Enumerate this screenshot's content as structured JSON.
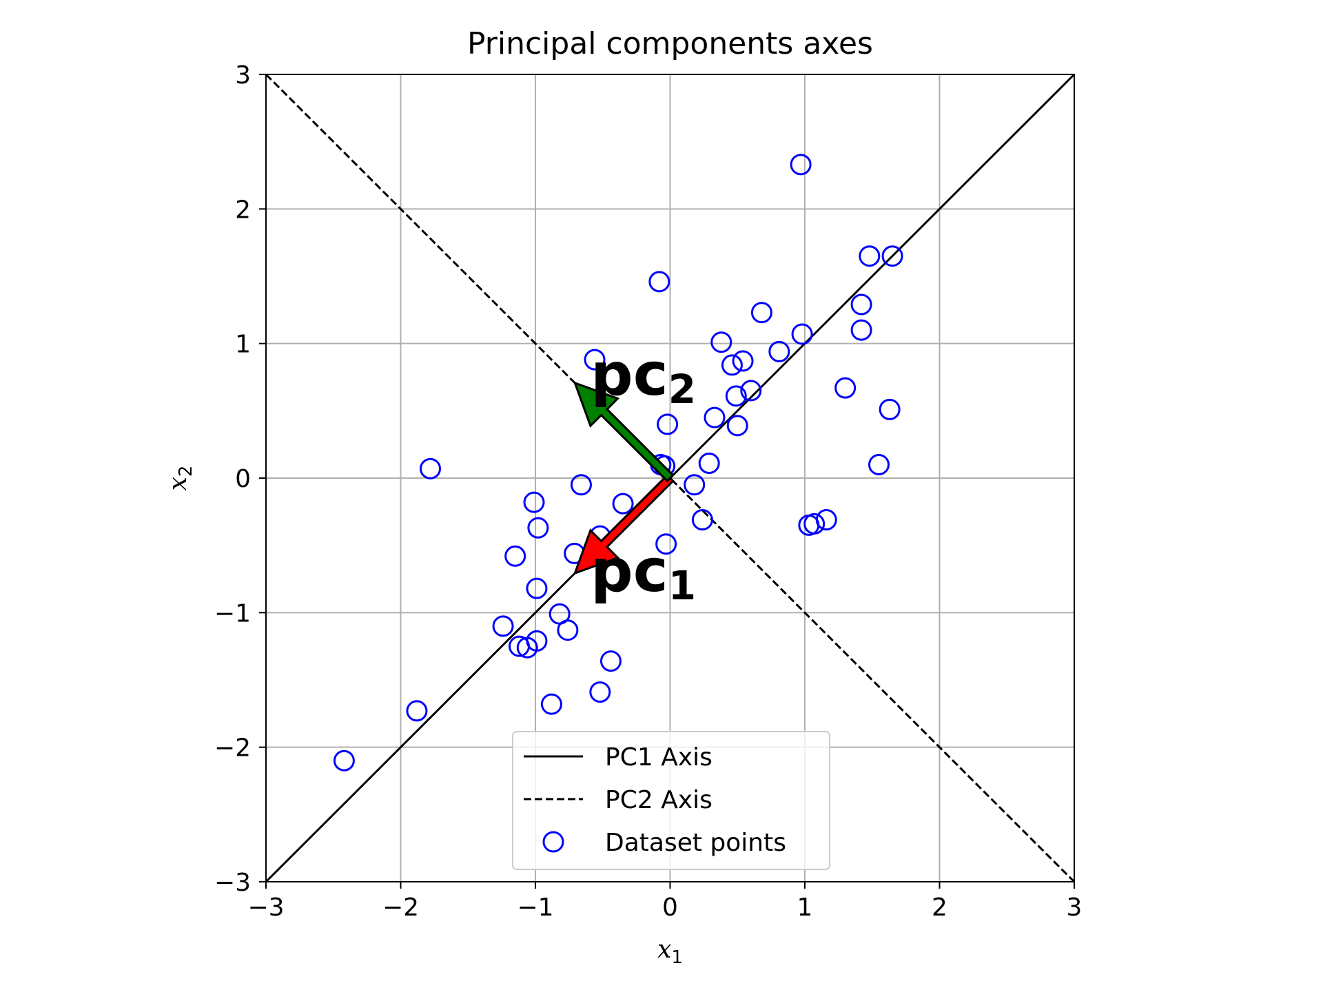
{
  "chart_data": {
    "type": "scatter",
    "title": "Principal components axes",
    "xlabel": "x",
    "xlabel_sub": "1",
    "ylabel": "x",
    "ylabel_sub": "2",
    "xlim": [
      -3,
      3
    ],
    "ylim": [
      -3,
      3
    ],
    "xticks": [
      -3,
      -2,
      -1,
      0,
      1,
      2,
      3
    ],
    "yticks": [
      -3,
      -2,
      -1,
      0,
      1,
      2,
      3
    ],
    "xtick_labels": [
      "−3",
      "−2",
      "−1",
      "0",
      "1",
      "2",
      "3"
    ],
    "ytick_labels": [
      "−3",
      "−2",
      "−1",
      "0",
      "1",
      "2",
      "3"
    ],
    "grid": true,
    "legend_position": "lower-center",
    "lines": [
      {
        "name": "PC1 Axis",
        "style": "solid",
        "color": "#000000",
        "x": [
          -3,
          3
        ],
        "y": [
          -3,
          3
        ]
      },
      {
        "name": "PC2 Axis",
        "style": "dashed",
        "color": "#000000",
        "x": [
          -3,
          3
        ],
        "y": [
          3,
          -3
        ]
      }
    ],
    "points": {
      "name": "Dataset points",
      "color": "#0000ff",
      "marker": "open-circle",
      "x": [
        0.97,
        -0.08,
        1.48,
        1.65,
        1.42,
        0.68,
        1.42,
        0.98,
        0.38,
        0.81,
        0.54,
        0.46,
        -0.56,
        1.3,
        0.6,
        0.49,
        1.63,
        0.33,
        0.5,
        -0.02,
        -0.07,
        -0.04,
        0.29,
        1.55,
        -1.78,
        -0.66,
        0.18,
        -1.01,
        -0.35,
        -0.98,
        0.24,
        1.07,
        1.03,
        1.16,
        -0.52,
        -0.03,
        -0.71,
        -1.15,
        -0.99,
        -0.82,
        -1.24,
        -0.76,
        -0.99,
        -1.06,
        -1.12,
        -0.44,
        -0.52,
        -0.88,
        -1.88,
        -2.42
      ],
      "y": [
        2.33,
        1.46,
        1.65,
        1.65,
        1.29,
        1.23,
        1.1,
        1.07,
        1.01,
        0.94,
        0.87,
        0.84,
        0.88,
        0.67,
        0.65,
        0.61,
        0.51,
        0.45,
        0.39,
        0.4,
        0.1,
        0.09,
        0.11,
        0.1,
        0.07,
        -0.05,
        -0.05,
        -0.18,
        -0.19,
        -0.37,
        -0.31,
        -0.34,
        -0.35,
        -0.31,
        -0.43,
        -0.49,
        -0.56,
        -0.58,
        -0.82,
        -1.01,
        -1.1,
        -1.13,
        -1.21,
        -1.26,
        -1.25,
        -1.36,
        -1.59,
        -1.68,
        -1.73,
        -2.1
      ]
    },
    "arrows": [
      {
        "name": "pc1",
        "label": "pc",
        "label_sub": "1",
        "color": "#ff0000",
        "x0": 0,
        "y0": 0,
        "x1": -0.707,
        "y1": -0.707,
        "label_x": -0.59,
        "label_y": -0.84
      },
      {
        "name": "pc2",
        "label": "pc",
        "label_sub": "2",
        "color": "#008000",
        "x0": 0,
        "y0": 0,
        "x1": -0.707,
        "y1": 0.707,
        "label_x": -0.59,
        "label_y": 0.62
      }
    ],
    "legend": [
      {
        "label": "PC1 Axis",
        "kind": "solid-line"
      },
      {
        "label": "PC2 Axis",
        "kind": "dashed-line"
      },
      {
        "label": "Dataset points",
        "kind": "open-circle"
      }
    ]
  }
}
